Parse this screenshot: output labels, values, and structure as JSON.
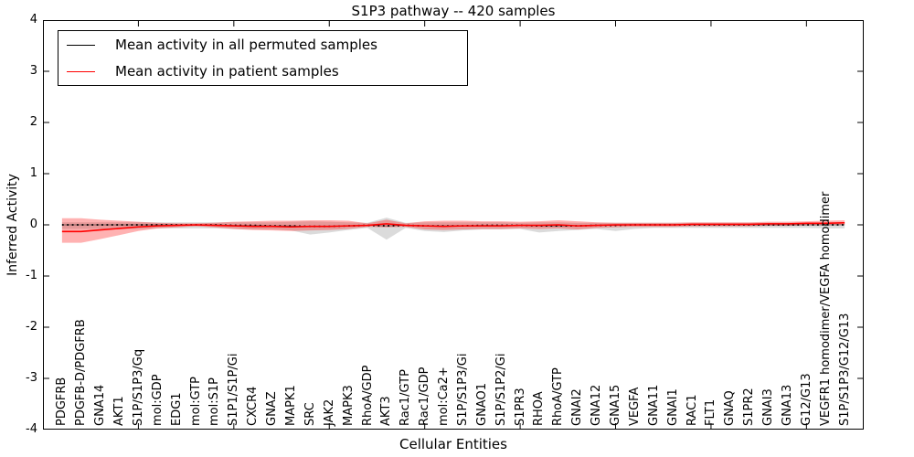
{
  "title": "S1P3 pathway -- 420 samples",
  "legend": {
    "items": [
      {
        "label": "Mean activity in all permuted samples",
        "color": "#000000"
      },
      {
        "label": "Mean activity in patient samples",
        "color": "#ff0000"
      }
    ]
  },
  "chart_data": {
    "type": "line",
    "title": "S1P3 pathway -- 420 samples",
    "xlabel": "Cellular Entities",
    "ylabel": "Inferred Activity",
    "ylim": [
      -4,
      4
    ],
    "yticks": [
      -4,
      -3,
      -2,
      -1,
      0,
      1,
      2,
      3,
      4
    ],
    "xtick_step": 5,
    "grid": false,
    "legend_position": "upper left",
    "categories": [
      "PDGFRB",
      "PDGFB-D/PDGFRB",
      "GNA14",
      "AKT1",
      "S1P/S1P3/Gq",
      "mol:GDP",
      "EDG1",
      "mol:GTP",
      "mol:S1P",
      "S1P1/S1P/Gi",
      "CXCR4",
      "GNAZ",
      "MAPK1",
      "SRC",
      "JAK2",
      "MAPK3",
      "RhoA/GDP",
      "AKT3",
      "Rac1/GTP",
      "Rac1/GDP",
      "mol:Ca2+",
      "S1P/S1P3/Gi",
      "GNAO1",
      "S1P/S1P2/Gi",
      "S1PR3",
      "RHOA",
      "RhoA/GTP",
      "GNAI2",
      "GNA12",
      "GNA15",
      "VEGFA",
      "GNA11",
      "GNAI1",
      "RAC1",
      "FLT1",
      "GNAQ",
      "S1PR2",
      "GNAI3",
      "GNA13",
      "G12/G13",
      "VEGFR1 homodimer/VEGFA homodimer",
      "S1P/S1P3/G12/G13"
    ],
    "series": [
      {
        "name": "Mean activity in all permuted samples",
        "color": "#000000",
        "linestyle": "dotted",
        "values": [
          0,
          0,
          0,
          0,
          0,
          0,
          0,
          0,
          0,
          -0.01,
          -0.01,
          -0.02,
          -0.02,
          -0.03,
          -0.03,
          -0.02,
          -0.01,
          -0.02,
          -0.01,
          -0.02,
          -0.02,
          -0.02,
          -0.01,
          -0.01,
          -0.01,
          -0.02,
          -0.02,
          -0.02,
          -0.01,
          -0.01,
          0,
          0,
          0,
          0,
          0,
          0,
          0,
          0,
          0,
          0,
          0,
          0
        ]
      },
      {
        "name": "Mean activity in patient samples",
        "color": "#ff0000",
        "linestyle": "solid",
        "values": [
          -0.13,
          -0.13,
          -0.1,
          -0.07,
          -0.04,
          -0.02,
          -0.01,
          0,
          -0.01,
          -0.02,
          -0.03,
          -0.03,
          -0.04,
          -0.03,
          -0.03,
          -0.02,
          -0.01,
          0.02,
          -0.01,
          -0.02,
          -0.03,
          -0.02,
          -0.02,
          -0.02,
          -0.01,
          -0.01,
          0,
          -0.02,
          -0.01,
          0,
          0,
          0,
          0,
          0.01,
          0.01,
          0.01,
          0.01,
          0.02,
          0.02,
          0.03,
          0.03,
          0.04
        ]
      }
    ],
    "bands": [
      {
        "name": "permuted-samples-range",
        "color": "#000000",
        "opacity": 0.14,
        "upper": [
          0.05,
          0.05,
          0.05,
          0.05,
          0.05,
          0.05,
          0.05,
          0.05,
          0.05,
          0.05,
          0.05,
          0.05,
          0.06,
          0.07,
          0.06,
          0.05,
          0.04,
          0.14,
          0.04,
          0.05,
          0.05,
          0.05,
          0.05,
          0.05,
          0.04,
          0.05,
          0.05,
          0.04,
          0.04,
          0.04,
          0.04,
          0.04,
          0.04,
          0.04,
          0.04,
          0.04,
          0.04,
          0.04,
          0.04,
          0.04,
          0.05,
          0.05
        ],
        "lower": [
          -0.08,
          -0.08,
          -0.08,
          -0.08,
          -0.08,
          -0.07,
          -0.07,
          -0.07,
          -0.07,
          -0.08,
          -0.09,
          -0.09,
          -0.11,
          -0.19,
          -0.15,
          -0.1,
          -0.06,
          -0.29,
          -0.06,
          -0.12,
          -0.14,
          -0.11,
          -0.09,
          -0.09,
          -0.08,
          -0.15,
          -0.12,
          -0.1,
          -0.08,
          -0.12,
          -0.08,
          -0.06,
          -0.06,
          -0.06,
          -0.06,
          -0.06,
          -0.06,
          -0.06,
          -0.06,
          -0.06,
          -0.07,
          -0.07
        ]
      },
      {
        "name": "patient-samples-range",
        "color": "#ff0000",
        "opacity": 0.3,
        "upper": [
          0.13,
          0.13,
          0.1,
          0.08,
          0.06,
          0.04,
          0.03,
          0.03,
          0.04,
          0.06,
          0.07,
          0.08,
          0.08,
          0.09,
          0.09,
          0.08,
          0.03,
          0.1,
          0.03,
          0.07,
          0.08,
          0.08,
          0.07,
          0.07,
          0.06,
          0.07,
          0.09,
          0.07,
          0.05,
          0.04,
          0.04,
          0.04,
          0.04,
          0.05,
          0.05,
          0.05,
          0.05,
          0.06,
          0.06,
          0.07,
          0.08,
          0.09
        ],
        "lower": [
          -0.35,
          -0.35,
          -0.28,
          -0.2,
          -0.12,
          -0.07,
          -0.05,
          -0.03,
          -0.05,
          -0.08,
          -0.1,
          -0.11,
          -0.12,
          -0.11,
          -0.1,
          -0.08,
          -0.04,
          -0.05,
          -0.04,
          -0.09,
          -0.1,
          -0.09,
          -0.08,
          -0.08,
          -0.07,
          -0.08,
          -0.07,
          -0.09,
          -0.06,
          -0.05,
          -0.04,
          -0.04,
          -0.04,
          -0.03,
          -0.03,
          -0.03,
          -0.03,
          -0.02,
          -0.02,
          -0.01,
          -0.01,
          0
        ]
      }
    ]
  }
}
